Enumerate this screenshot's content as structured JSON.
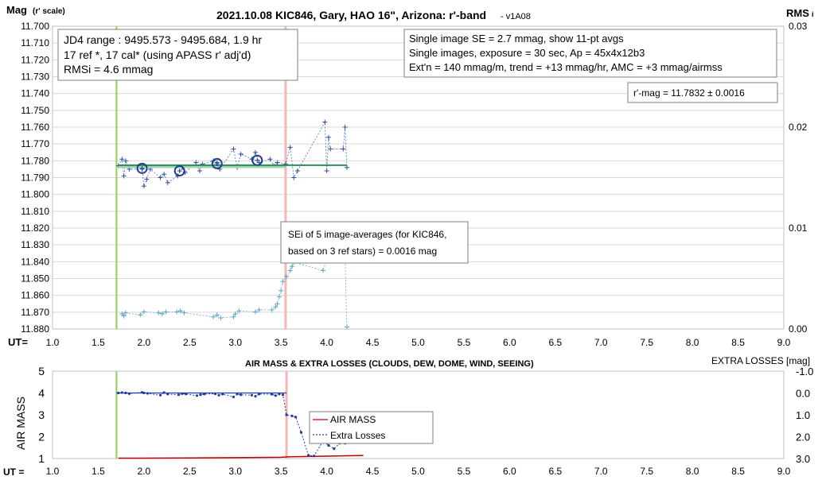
{
  "chart_data": [
    {
      "type": "scatter",
      "title": "2021.10.08 KIC846, Gary, HAO 16\", Arizona: r'-band",
      "subtitle": " - v1A08",
      "ylabel_main": "Mag",
      "ylabel_sub": "(r' scale)",
      "ylabel_right": "RMS",
      "ylabel_right_sub": "i",
      "xlabel": "UT=",
      "xlim": [
        1.0,
        9.0
      ],
      "ylim": [
        11.7,
        11.88
      ],
      "ylim_right": [
        0.0,
        0.03
      ],
      "grid": true,
      "x_ticks": [
        "1.0",
        "1.5",
        "2.0",
        "2.5",
        "3.0",
        "3.5",
        "4.0",
        "4.5",
        "5.0",
        "5.5",
        "6.0",
        "6.5",
        "7.0",
        "7.5",
        "8.0",
        "8.5",
        "9.0"
      ],
      "y_ticks": [
        "11.700",
        "11.710",
        "11.720",
        "11.730",
        "11.740",
        "11.750",
        "11.760",
        "11.770",
        "11.780",
        "11.790",
        "11.800",
        "11.810",
        "11.820",
        "11.830",
        "11.840",
        "11.850",
        "11.860",
        "11.870",
        "11.880"
      ],
      "y_right_ticks": [
        "0.03",
        "0.02",
        "0.01",
        "0.00"
      ],
      "y_right_tick_values": [
        0.03,
        0.02,
        0.01,
        0.0
      ],
      "info_left": [
        "JD4 range : 9495.573 - 9495.684,  1.9  hr",
        "17 ref *, 17 cal* (using APASS r' adj'd)",
        "RMSi = 4.6 mmag"
      ],
      "info_right": [
        "Single image SE = 2.7 mmag, show  11-pt avgs",
        "Single images, exposure = 30 sec, Ap = 45x4x12b3",
        "Ext'n = 140 mmag/m, trend = +13  mmag/hr, AMC = +3 mmag/airmss"
      ],
      "mag_result": "r'-mag = 11.7832 ± 0.0016",
      "annotation": [
        "SEi of 5 image-averages (for KIC846,",
        "based on 3 ref stars) = 0.0016 mag"
      ],
      "vertical_lines": [
        {
          "x": 1.7,
          "color": "#92d050"
        },
        {
          "x": 3.55,
          "color": "#f4b6b6"
        }
      ],
      "fit_line": {
        "x": [
          1.72,
          4.22
        ],
        "y": [
          11.7826,
          11.7826
        ],
        "color": "#2e8b57"
      },
      "fit_line2": {
        "x": [
          1.72,
          3.55
        ],
        "y": [
          11.7836,
          11.7836
        ],
        "color": "#9fd3b4"
      },
      "single_images": {
        "x": [
          1.72,
          1.76,
          1.78,
          1.8,
          1.84,
          1.98,
          2.0,
          2.03,
          2.07,
          2.18,
          2.22,
          2.26,
          2.37,
          2.42,
          2.45,
          2.57,
          2.61,
          2.64,
          2.76,
          2.8,
          2.83,
          2.98,
          3.02,
          3.06,
          3.18,
          3.22,
          3.26,
          3.38,
          3.42,
          3.46,
          3.55,
          3.6,
          3.64,
          3.68,
          3.98,
          4.0,
          4.02,
          4.04,
          4.18,
          4.2,
          4.22
        ],
        "y": [
          11.783,
          11.779,
          11.789,
          11.78,
          11.785,
          11.785,
          11.795,
          11.791,
          11.785,
          11.79,
          11.788,
          11.793,
          11.789,
          11.784,
          11.787,
          11.781,
          11.786,
          11.782,
          11.78,
          11.781,
          11.785,
          11.773,
          11.784,
          11.776,
          11.779,
          11.775,
          11.781,
          11.779,
          11.783,
          11.781,
          11.782,
          11.772,
          11.79,
          11.786,
          11.757,
          11.786,
          11.766,
          11.773,
          11.773,
          11.76,
          11.784
        ]
      },
      "averages": {
        "x": [
          1.98,
          2.39,
          2.8,
          3.24
        ],
        "y": [
          11.7845,
          11.786,
          11.7817,
          11.7797
        ]
      },
      "rms_points": {
        "x": [
          1.76,
          1.78,
          1.8,
          1.96,
          2.0,
          2.16,
          2.2,
          2.24,
          2.36,
          2.4,
          2.44,
          2.76,
          2.8,
          2.84,
          2.98,
          3.0,
          3.04,
          3.22,
          3.26,
          3.4,
          3.44,
          3.46,
          3.48,
          3.5,
          3.52,
          3.56,
          3.6,
          3.62,
          3.64,
          3.96,
          4.0,
          4.02,
          4.18,
          4.2,
          4.22
        ],
        "y": [
          0.0015,
          0.0013,
          0.0016,
          0.0014,
          0.0017,
          0.0016,
          0.0015,
          0.0017,
          0.0017,
          0.0018,
          0.0016,
          0.0012,
          0.0014,
          0.0011,
          0.0012,
          0.0015,
          0.0018,
          0.0017,
          0.0019,
          0.0019,
          0.0022,
          0.0025,
          0.0032,
          0.0038,
          0.0047,
          0.0052,
          0.0058,
          0.0062,
          0.0066,
          0.0058,
          0.0069,
          0.0072,
          0.0076,
          0.007,
          0.0002
        ]
      }
    },
    {
      "type": "line",
      "title": "AIR MASS & EXTRA LOSSES (CLOUDS, DEW, DOME, WIND, SEEING)",
      "ylabel": "AIR MASS",
      "ylabel_right": "EXTRA LOSSES [mag]",
      "xlabel": "UT =",
      "xlim": [
        1.0,
        9.0
      ],
      "ylim": [
        1,
        5
      ],
      "ylim_right": [
        -1.0,
        3.0
      ],
      "x_ticks": [
        "1.0",
        "1.5",
        "2.0",
        "2.5",
        "3.0",
        "3.5",
        "4.0",
        "4.5",
        "5.0",
        "5.5",
        "6.0",
        "6.5",
        "7.0",
        "7.5",
        "8.0",
        "8.5",
        "9.0"
      ],
      "y_ticks": [
        "1",
        "2",
        "3",
        "4",
        "5"
      ],
      "y_right_ticks": [
        "-1.0",
        "0.0",
        "1.0",
        "2.0",
        "3.0"
      ],
      "legend": [
        "AIR MASS",
        "Extra Losses"
      ],
      "vertical_lines": [
        {
          "x": 1.7,
          "color": "#92d050"
        },
        {
          "x": 3.56,
          "color": "#f4b6b6"
        }
      ],
      "reference_line": {
        "x": [
          1.7,
          3.56
        ],
        "y": [
          4.0,
          4.0
        ],
        "color": "#1f3f9f"
      },
      "series": [
        {
          "name": "AIR MASS",
          "color": "#c00000",
          "x": [
            1.72,
            2.0,
            2.5,
            3.0,
            3.5,
            3.6,
            4.0,
            4.4
          ],
          "y": [
            1.02,
            1.02,
            1.03,
            1.04,
            1.06,
            1.08,
            1.11,
            1.14
          ]
        },
        {
          "name": "Extra Losses",
          "color": "#1f3f9f",
          "x": [
            1.72,
            1.76,
            1.8,
            1.84,
            1.98,
            2.0,
            2.04,
            2.18,
            2.22,
            2.26,
            2.38,
            2.42,
            2.46,
            2.58,
            2.62,
            2.66,
            2.78,
            2.82,
            2.86,
            2.98,
            3.02,
            3.06,
            3.18,
            3.22,
            3.26,
            3.4,
            3.44,
            3.48,
            3.52,
            3.56,
            3.62,
            3.66,
            3.72,
            3.8,
            3.86,
            3.96,
            4.02,
            4.08,
            4.14,
            4.2,
            4.22
          ],
          "y": [
            0.0,
            -0.02,
            0.0,
            0.03,
            -0.03,
            0.0,
            0.02,
            0.1,
            -0.02,
            0.05,
            0.08,
            0.03,
            0.05,
            0.12,
            0.08,
            0.05,
            0.04,
            0.1,
            0.05,
            0.18,
            0.05,
            0.08,
            0.1,
            0.15,
            0.05,
            0.06,
            0.12,
            0.05,
            0.08,
            1.0,
            1.05,
            1.1,
            1.8,
            2.85,
            2.88,
            2.2,
            2.4,
            2.55,
            2.3,
            2.3,
            2.2
          ]
        }
      ]
    }
  ]
}
